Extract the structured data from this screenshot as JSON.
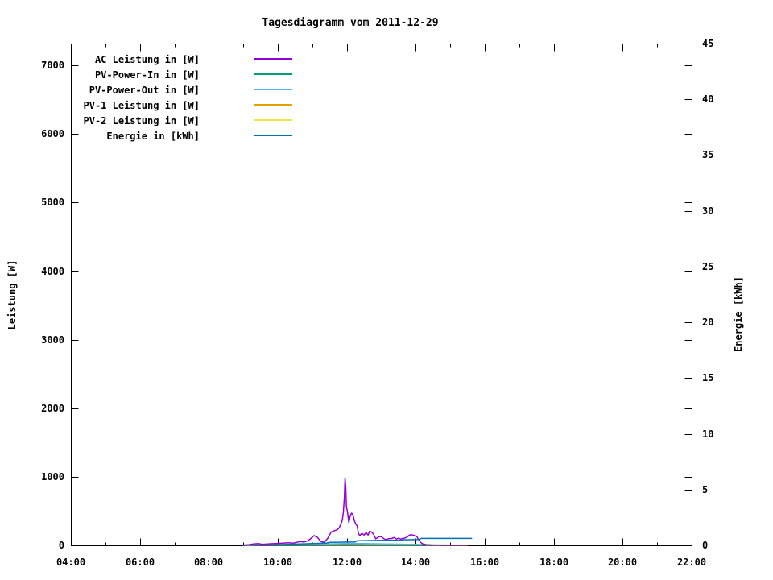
{
  "chart": {
    "title": "Tagesdiagramm vom 2011-12-29",
    "ylabel": "Leistung [W]",
    "y2label": "Energie [kWh]"
  },
  "chart_data": {
    "type": "line",
    "title": "Tagesdiagramm vom 2011-12-29",
    "xlabel": "",
    "ylabel": "Leistung [W]",
    "y2label": "Energie [kWh]",
    "grid": false,
    "legend_position": "top-left-inside",
    "x_unit": "hours (time of day)",
    "xlim": [
      4,
      22
    ],
    "ylim": [
      0,
      7320
    ],
    "y2lim": [
      0,
      45
    ],
    "x_ticks": [
      {
        "hour": 4,
        "label": "04:00"
      },
      {
        "hour": 6,
        "label": "06:00"
      },
      {
        "hour": 8,
        "label": "08:00"
      },
      {
        "hour": 10,
        "label": "10:00"
      },
      {
        "hour": 12,
        "label": "12:00"
      },
      {
        "hour": 14,
        "label": "14:00"
      },
      {
        "hour": 16,
        "label": "16:00"
      },
      {
        "hour": 18,
        "label": "18:00"
      },
      {
        "hour": 20,
        "label": "20:00"
      },
      {
        "hour": 22,
        "label": "22:00"
      }
    ],
    "x_minor_hours": [
      5,
      7,
      9,
      11,
      13,
      15,
      17,
      19,
      21
    ],
    "y_ticks": [
      0,
      1000,
      2000,
      3000,
      4000,
      5000,
      6000,
      7000
    ],
    "y2_ticks": [
      0,
      5,
      10,
      15,
      20,
      25,
      30,
      35,
      40,
      45
    ],
    "series": [
      {
        "id": "pv1_leistung",
        "label": "PV-1 Leistung in [W]",
        "color": "#e69f00",
        "axis": "y1",
        "points": [
          [
            9.0,
            1
          ],
          [
            12.0,
            2
          ],
          [
            15.5,
            1
          ]
        ]
      },
      {
        "id": "pv2_leistung",
        "label": "PV-2 Leistung in [W]",
        "color": "#f0e442",
        "axis": "y1",
        "points": [
          [
            9.0,
            1
          ],
          [
            12.0,
            2
          ],
          [
            15.5,
            1
          ]
        ]
      },
      {
        "id": "pv_power_in",
        "label": "PV-Power-In in [W]",
        "color": "#009e73",
        "axis": "y1",
        "points": [
          [
            8.95,
            2
          ],
          [
            10.0,
            3
          ],
          [
            11.0,
            5
          ],
          [
            12.0,
            8
          ],
          [
            13.0,
            6
          ],
          [
            14.0,
            4
          ],
          [
            15.5,
            2
          ]
        ]
      },
      {
        "id": "pv_power_out",
        "label": "PV-Power-Out in [W]",
        "color": "#56b4e9",
        "axis": "y1",
        "points": [
          [
            9.1,
            5
          ],
          [
            9.5,
            10
          ],
          [
            10.0,
            12
          ],
          [
            10.5,
            14
          ],
          [
            11.0,
            18
          ],
          [
            11.5,
            22
          ],
          [
            12.0,
            28
          ],
          [
            12.5,
            26
          ],
          [
            13.0,
            22
          ],
          [
            13.5,
            18
          ],
          [
            14.0,
            14
          ],
          [
            14.3,
            8
          ],
          [
            14.6,
            4
          ],
          [
            15.45,
            3
          ]
        ]
      },
      {
        "id": "ac_leistung",
        "label": "AC Leistung in [W]",
        "color": "#9400d3",
        "axis": "y1",
        "points": [
          [
            8.95,
            3
          ],
          [
            9.15,
            8
          ],
          [
            9.3,
            20
          ],
          [
            9.45,
            26
          ],
          [
            9.55,
            15
          ],
          [
            9.7,
            20
          ],
          [
            9.85,
            25
          ],
          [
            10.0,
            28
          ],
          [
            10.15,
            32
          ],
          [
            10.3,
            38
          ],
          [
            10.45,
            33
          ],
          [
            10.55,
            45
          ],
          [
            10.65,
            55
          ],
          [
            10.75,
            48
          ],
          [
            10.85,
            62
          ],
          [
            10.95,
            95
          ],
          [
            11.05,
            142
          ],
          [
            11.15,
            115
          ],
          [
            11.25,
            55
          ],
          [
            11.35,
            45
          ],
          [
            11.45,
            105
          ],
          [
            11.55,
            195
          ],
          [
            11.65,
            215
          ],
          [
            11.72,
            225
          ],
          [
            11.78,
            255
          ],
          [
            11.83,
            310
          ],
          [
            11.87,
            365
          ],
          [
            11.9,
            480
          ],
          [
            11.93,
            700
          ],
          [
            11.95,
            985
          ],
          [
            11.97,
            860
          ],
          [
            11.99,
            560
          ],
          [
            12.02,
            495
          ],
          [
            12.06,
            330
          ],
          [
            12.1,
            430
          ],
          [
            12.14,
            470
          ],
          [
            12.18,
            445
          ],
          [
            12.22,
            360
          ],
          [
            12.26,
            310
          ],
          [
            12.3,
            285
          ],
          [
            12.34,
            170
          ],
          [
            12.38,
            142
          ],
          [
            12.44,
            175
          ],
          [
            12.5,
            150
          ],
          [
            12.56,
            185
          ],
          [
            12.62,
            150
          ],
          [
            12.66,
            205
          ],
          [
            12.72,
            195
          ],
          [
            12.78,
            160
          ],
          [
            12.84,
            95
          ],
          [
            12.9,
            115
          ],
          [
            12.96,
            130
          ],
          [
            13.02,
            120
          ],
          [
            13.08,
            95
          ],
          [
            13.14,
            85
          ],
          [
            13.2,
            95
          ],
          [
            13.3,
            100
          ],
          [
            13.38,
            115
          ],
          [
            13.44,
            90
          ],
          [
            13.5,
            105
          ],
          [
            13.56,
            90
          ],
          [
            13.62,
            100
          ],
          [
            13.68,
            105
          ],
          [
            13.76,
            125
          ],
          [
            13.82,
            150
          ],
          [
            13.88,
            155
          ],
          [
            13.95,
            145
          ],
          [
            14.02,
            135
          ],
          [
            14.08,
            85
          ],
          [
            14.14,
            45
          ],
          [
            14.2,
            22
          ],
          [
            14.3,
            10
          ],
          [
            14.45,
            6
          ],
          [
            14.7,
            5
          ],
          [
            15.0,
            4
          ],
          [
            15.3,
            3
          ],
          [
            15.5,
            3
          ]
        ]
      },
      {
        "id": "energie",
        "label": "Energie in [kWh]",
        "color": "#0072b2",
        "axis": "y2",
        "points": [
          [
            9.4,
            0.01
          ],
          [
            9.7,
            0.03
          ],
          [
            10.0,
            0.06
          ],
          [
            10.3,
            0.09
          ],
          [
            10.6,
            0.12
          ],
          [
            10.9,
            0.15
          ],
          [
            11.2,
            0.18
          ],
          [
            11.44,
            0.22
          ],
          [
            11.5,
            0.27
          ],
          [
            11.9,
            0.29
          ],
          [
            12.25,
            0.3
          ],
          [
            12.3,
            0.42
          ],
          [
            12.9,
            0.44
          ],
          [
            13.58,
            0.46
          ],
          [
            13.64,
            0.5
          ],
          [
            14.1,
            0.52
          ],
          [
            14.16,
            0.62
          ],
          [
            15.62,
            0.62
          ]
        ]
      }
    ]
  }
}
